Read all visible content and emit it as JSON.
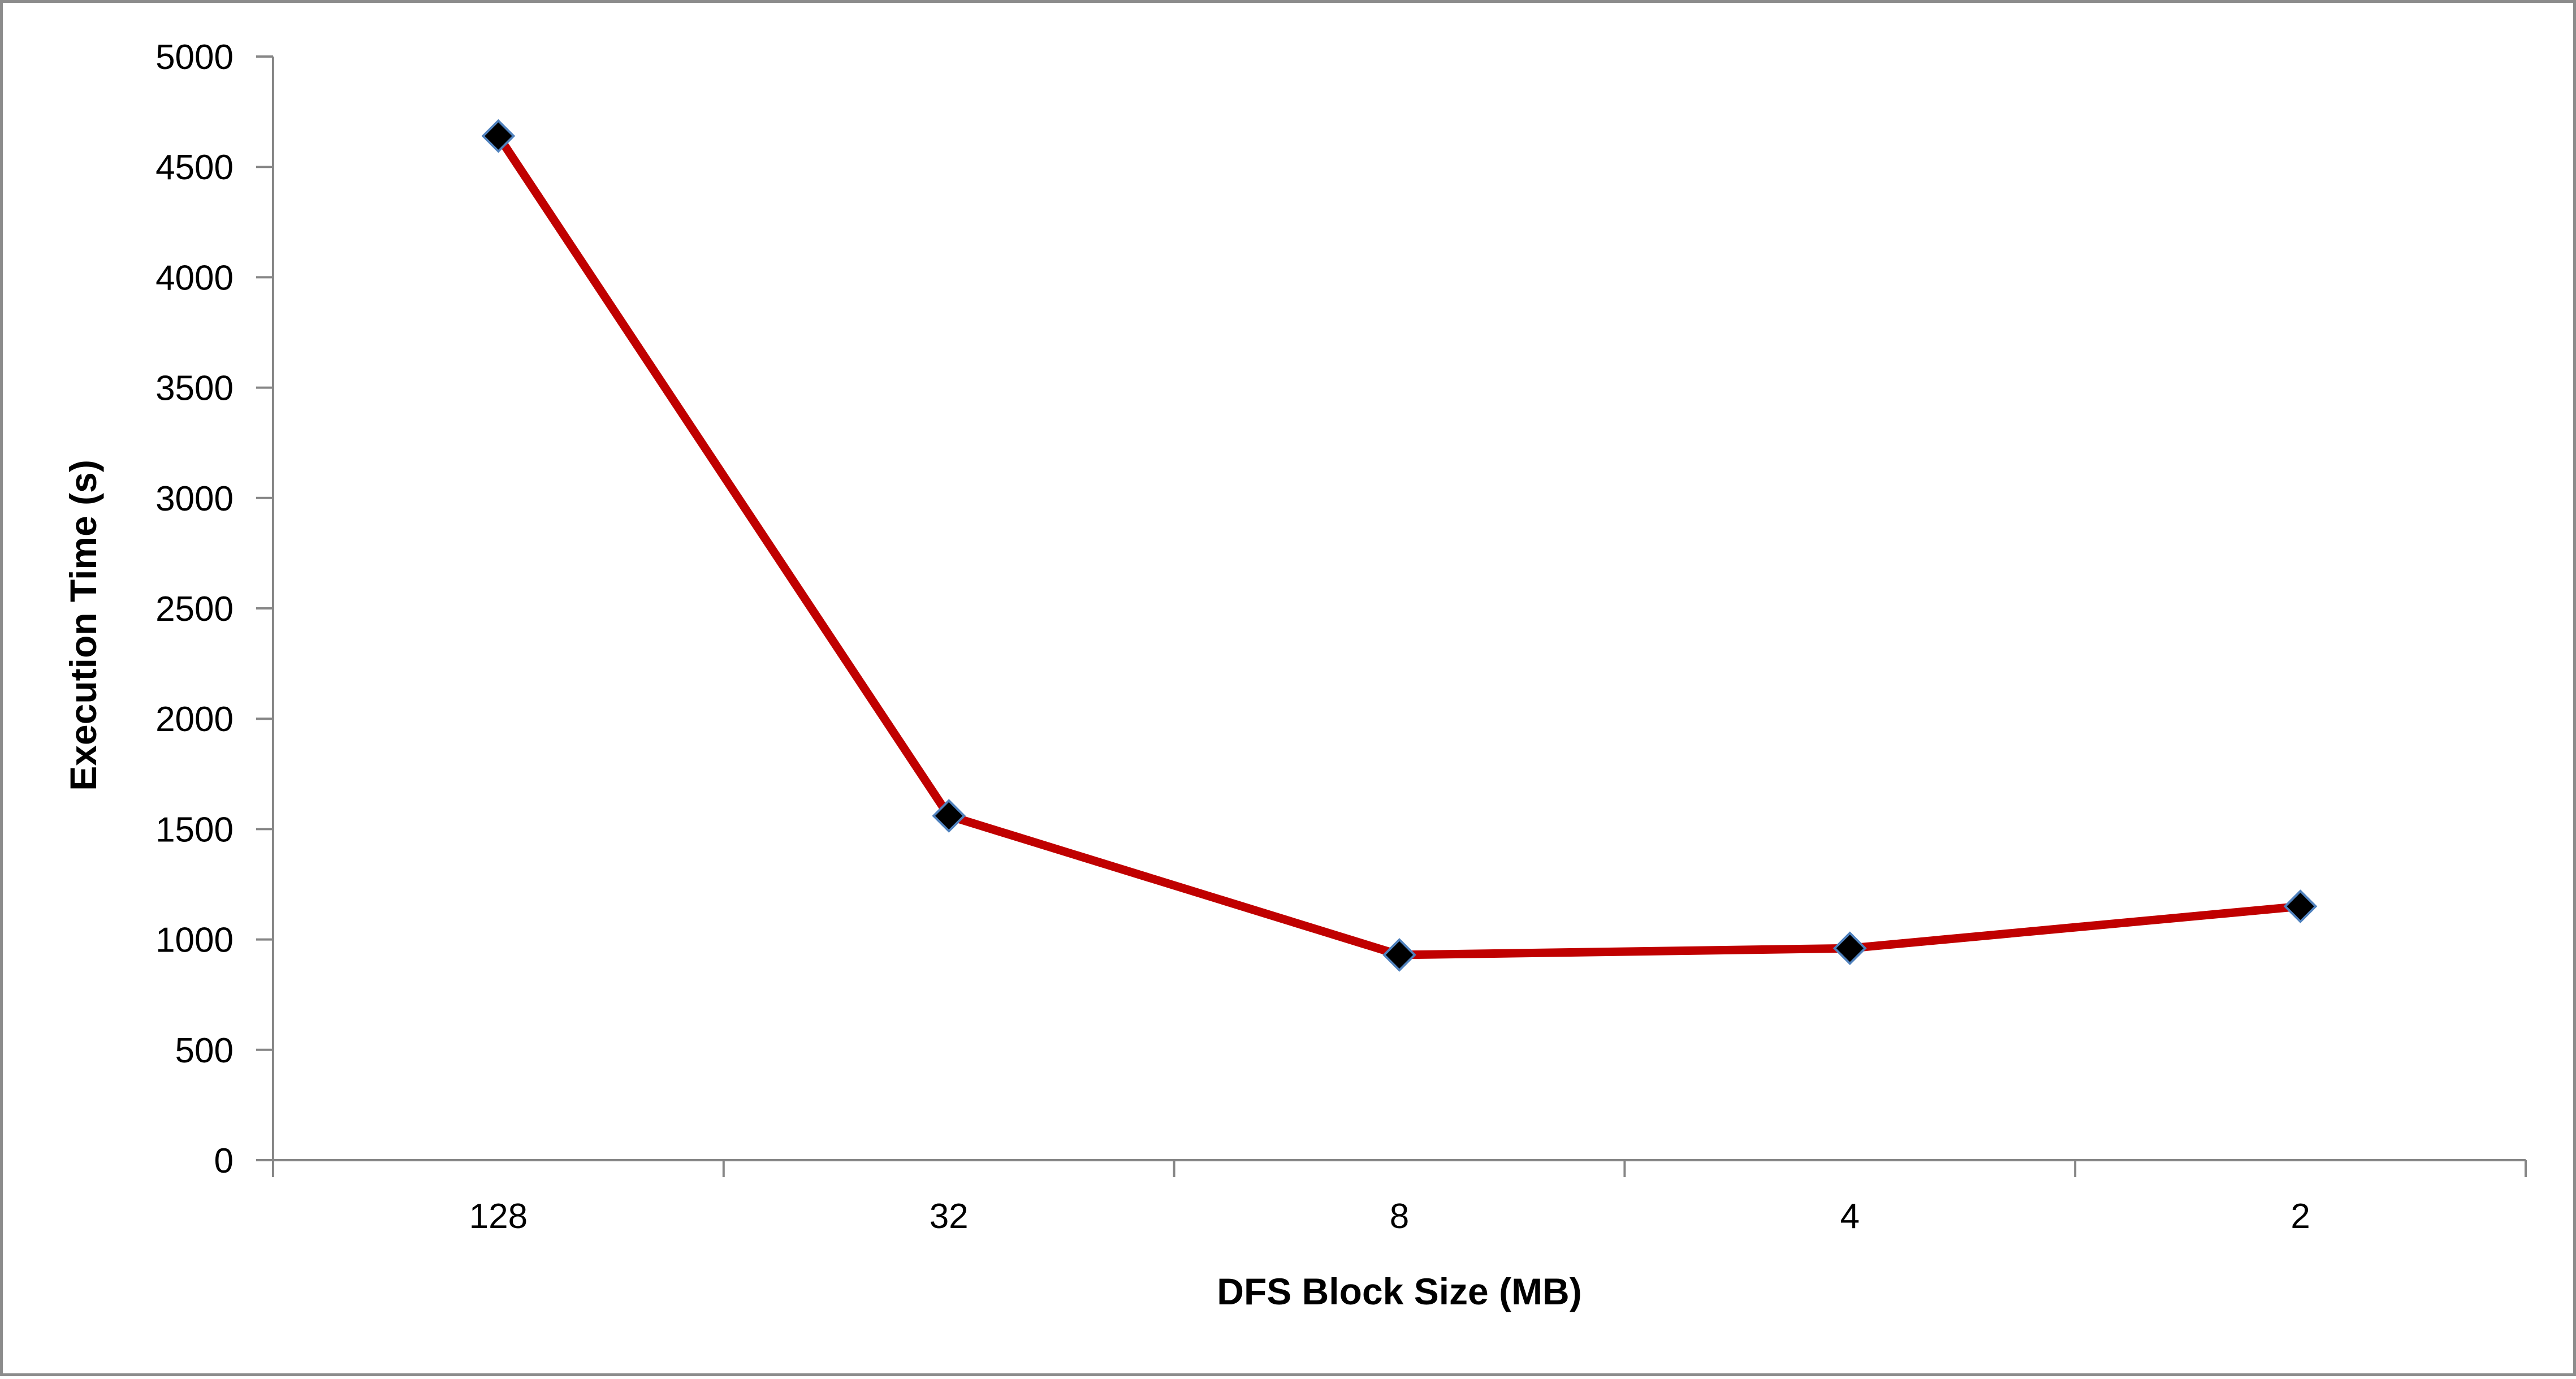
{
  "chart_data": {
    "type": "line",
    "title": "",
    "xlabel": "DFS Block Size (MB)",
    "ylabel": "Execution Time (s)",
    "categories": [
      "128",
      "32",
      "8",
      "4",
      "2"
    ],
    "series": [
      {
        "values": [
          4640,
          1560,
          930,
          960,
          1150
        ]
      }
    ],
    "ylim": [
      0,
      5000
    ],
    "yticks": [
      0,
      500,
      1000,
      1500,
      2000,
      2500,
      3000,
      3500,
      4000,
      4500,
      5000
    ],
    "grid": false,
    "legend": "none",
    "colors": {
      "line": "#c00000",
      "marker_fill": "#000000",
      "marker_edge": "#4f81bd",
      "axis": "#868686"
    },
    "marker": "diamond"
  }
}
